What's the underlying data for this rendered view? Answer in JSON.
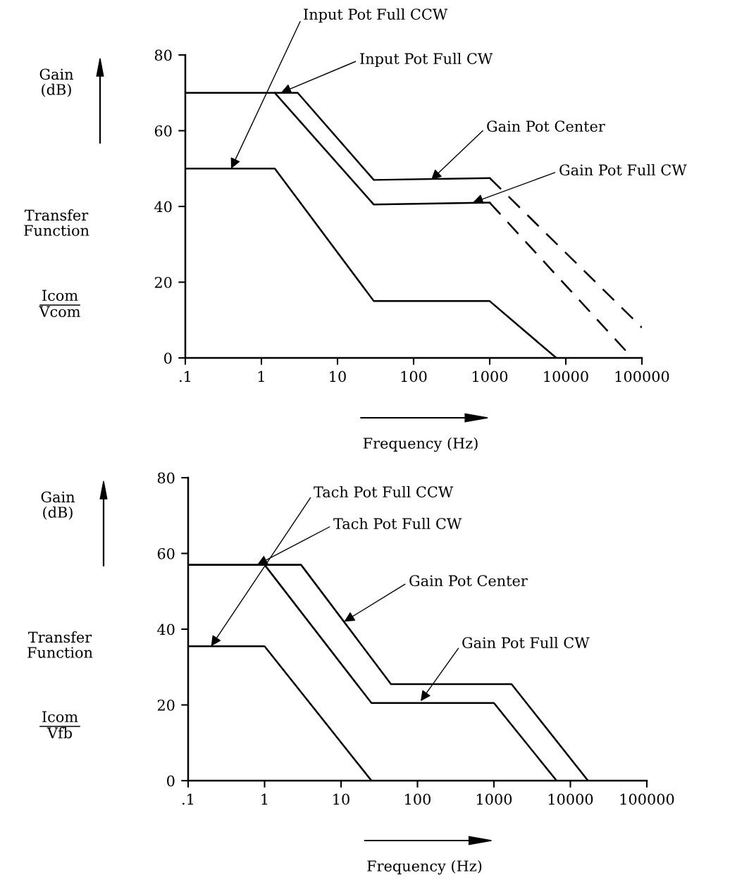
{
  "chart_data": [
    {
      "type": "line",
      "xlabel": "Frequency (Hz)",
      "ylabel": "Gain\n(dB)",
      "log": "x",
      "grid": false,
      "legend": false,
      "marker": "none",
      "line_style": "solid",
      "xlim": [
        0.1,
        100000
      ],
      "ylim": [
        0,
        80
      ],
      "xticks": [
        {
          "value": 0.1,
          "label": ".1"
        },
        1,
        10,
        100,
        1000,
        10000,
        100000
      ],
      "yticks": [
        0,
        20,
        40,
        60,
        80
      ],
      "series": [
        {
          "color": "#000000",
          "x": [
            0.1,
            3,
            30,
            1000
          ],
          "values": [
            70,
            70,
            47,
            47.5
          ]
        },
        {
          "color": "#000000",
          "x": [
            1000,
            100000
          ],
          "values": [
            47.5,
            8
          ],
          "line_style": "dashed"
        },
        {
          "color": "#000000",
          "x": [
            1.5,
            30,
            1000
          ],
          "values": [
            70,
            40.5,
            41
          ]
        },
        {
          "color": "#000000",
          "x": [
            1000,
            75000
          ],
          "values": [
            41,
            0
          ],
          "line_style": "dashed"
        },
        {
          "color": "#000000",
          "x": [
            0.1,
            1.5,
            30,
            1000,
            7500
          ],
          "values": [
            50,
            50,
            15,
            15,
            0
          ]
        }
      ],
      "annotations": [
        {
          "text": "Input Pot Full CCW",
          "x": 0.4,
          "y": 50
        },
        {
          "text": "Input Pot Full CW",
          "x": 1.8,
          "y": 70
        },
        {
          "text": "Gain Pot Center",
          "x": 170,
          "y": 47
        },
        {
          "text": "Gain Pot Full CW",
          "x": 600,
          "y": 41
        },
        "Transfer\nFunction",
        "Icom\nVcom"
      ]
    },
    {
      "type": "line",
      "xlabel": "Frequency (Hz)",
      "ylabel": "Gain\n(dB)",
      "log": "x",
      "grid": false,
      "legend": false,
      "marker": "none",
      "line_style": "solid",
      "xlim": [
        0.1,
        100000
      ],
      "ylim": [
        0,
        80
      ],
      "xticks": [
        {
          "value": 0.1,
          "label": ".1"
        },
        1,
        10,
        100,
        1000,
        10000,
        100000
      ],
      "yticks": [
        0,
        20,
        40,
        60,
        80
      ],
      "series": [
        {
          "color": "#000000",
          "x": [
            0.1,
            3,
            45,
            1700,
            17000
          ],
          "values": [
            57,
            57,
            25.5,
            25.5,
            0
          ]
        },
        {
          "color": "#000000",
          "x": [
            1,
            25,
            1000,
            6600
          ],
          "values": [
            57,
            20.5,
            20.5,
            0
          ]
        },
        {
          "color": "#000000",
          "x": [
            0.1,
            1,
            25
          ],
          "values": [
            35.5,
            35.5,
            0
          ]
        }
      ],
      "annotations": [
        {
          "text": "Tach Pot Full CCW",
          "x": 0.2,
          "y": 35.5
        },
        {
          "text": "Tach Pot Full CW",
          "x": 0.8,
          "y": 57
        },
        {
          "text": "Gain Pot Center",
          "x": 11,
          "y": 42
        },
        {
          "text": "Gain Pot Full CW",
          "x": 110,
          "y": 21
        },
        "Transfer\nFunction",
        "Icom\nVfb"
      ]
    }
  ]
}
